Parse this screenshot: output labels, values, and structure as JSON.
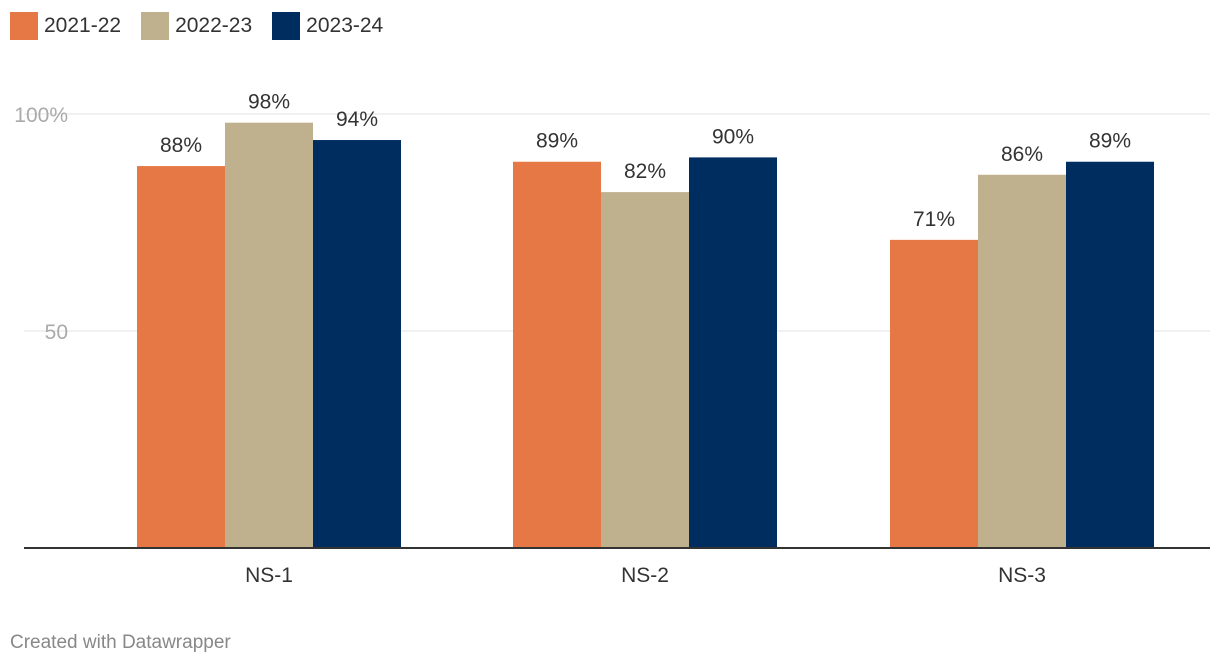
{
  "legend": {
    "items": [
      {
        "label": "2021-22",
        "color": "#E57844"
      },
      {
        "label": "2022-23",
        "color": "#BFB08E"
      },
      {
        "label": "2023-24",
        "color": "#002D60"
      }
    ]
  },
  "footer": {
    "credit": "Created with Datawrapper"
  },
  "chart_data": {
    "type": "bar",
    "categories": [
      "NS-1",
      "NS-2",
      "NS-3"
    ],
    "series": [
      {
        "name": "2021-22",
        "color": "#E57844",
        "values": [
          88,
          89,
          71
        ],
        "labels": [
          "88%",
          "89%",
          "71%"
        ]
      },
      {
        "name": "2022-23",
        "color": "#BFB08E",
        "values": [
          98,
          82,
          86
        ],
        "labels": [
          "98%",
          "82%",
          "86%"
        ]
      },
      {
        "name": "2023-24",
        "color": "#002D60",
        "values": [
          94,
          90,
          89
        ],
        "labels": [
          "94%",
          "90%",
          "89%"
        ]
      }
    ],
    "y_ticks": [
      {
        "value": 50,
        "label": "50"
      },
      {
        "value": 100,
        "label": "100%"
      }
    ],
    "ylim": [
      0,
      100
    ],
    "grid": true,
    "legend_position": "top-left"
  }
}
